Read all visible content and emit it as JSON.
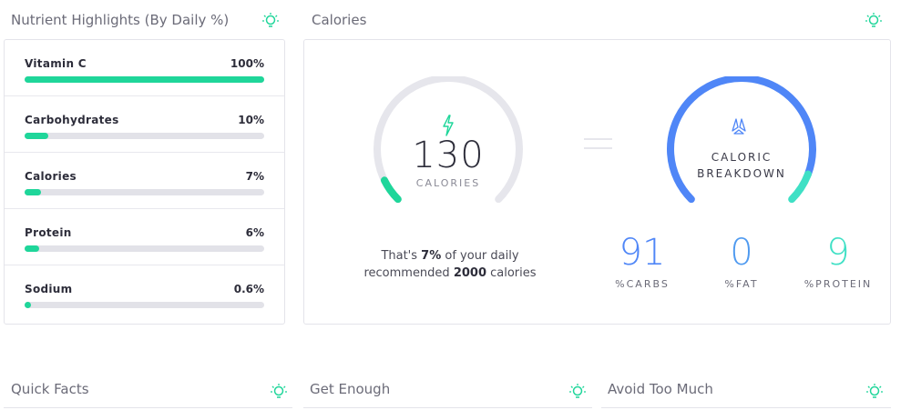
{
  "nutrients": {
    "title": "Nutrient Highlights (By Daily %)",
    "items": [
      {
        "label": "Vitamin C",
        "value": "100%",
        "fraction": 1.0
      },
      {
        "label": "Carbohydrates",
        "value": "10%",
        "fraction": 0.1
      },
      {
        "label": "Calories",
        "value": "7%",
        "fraction": 0.07
      },
      {
        "label": "Protein",
        "value": "6%",
        "fraction": 0.06
      },
      {
        "label": "Sodium",
        "value": "0.6%",
        "fraction": 0.006
      }
    ]
  },
  "calories": {
    "title": "Calories",
    "amount": "130",
    "unit": "CALORIES",
    "daily_fraction": 0.07,
    "daily_text_prefix": "That's ",
    "daily_percent": "7%",
    "daily_text_mid": " of your daily recommended ",
    "daily_total": "2000",
    "daily_text_suffix": " calories",
    "breakdown_label_line1": "CALORIC",
    "breakdown_label_line2": "BREAKDOWN",
    "breakdown": [
      {
        "value": "91",
        "label": "%CARBS",
        "fraction": 0.91,
        "color": "#4f86f7"
      },
      {
        "value": "0",
        "label": "%FAT",
        "fraction": 0.0,
        "color": "#4f9af0"
      },
      {
        "value": "9",
        "label": "%PROTEIN",
        "fraction": 0.09,
        "color": "#3fe0c5"
      }
    ]
  },
  "bottom_sections": [
    {
      "title": "Quick Facts"
    },
    {
      "title": "Get Enough"
    },
    {
      "title": "Avoid Too Much"
    }
  ],
  "colors": {
    "accent_green": "#1fd69a",
    "track": "#e2e2e8",
    "carbs_blue": "#4f86f7",
    "protein_teal": "#3fe0c5"
  },
  "icons": {
    "section_icon": "lightbulb-icon",
    "calorie_icon": "lightning-bolt-icon",
    "breakdown_icon": "triangle-icon"
  }
}
